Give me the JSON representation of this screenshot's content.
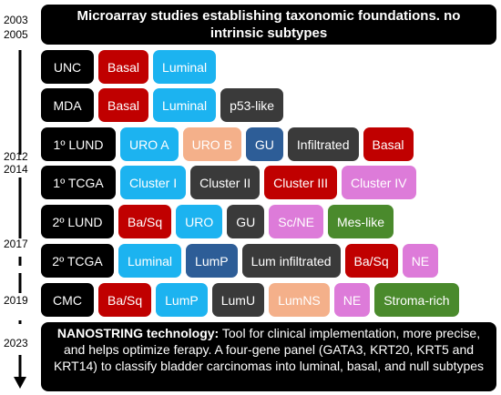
{
  "header": {
    "text": "Microarray studies establishing taxonomic foundations. no intrinsic subtypes"
  },
  "years": [
    "2003",
    "2005",
    "2012",
    "2014",
    "2017",
    "2019",
    "2023"
  ],
  "rows": [
    {
      "label": "UNC",
      "subtypes": [
        {
          "label": "Basal",
          "color": "#c00000"
        },
        {
          "label": "Luminal",
          "color": "#1cb3f0"
        }
      ]
    },
    {
      "label": "MDA",
      "subtypes": [
        {
          "label": "Basal",
          "color": "#c00000"
        },
        {
          "label": "Luminal",
          "color": "#1cb3f0"
        },
        {
          "label": "p53-like",
          "color": "#3a3a3a"
        }
      ]
    },
    {
      "label": "1º LUND",
      "subtypes": [
        {
          "label": "URO A",
          "color": "#1cb3f0"
        },
        {
          "label": "URO B",
          "color": "#f4b08a"
        },
        {
          "label": "GU",
          "color": "#2d5d97"
        },
        {
          "label": "Infiltrated",
          "color": "#3a3a3a"
        },
        {
          "label": "Basal",
          "color": "#c00000"
        }
      ]
    },
    {
      "label": "1º TCGA",
      "subtypes": [
        {
          "label": "Cluster I",
          "color": "#1cb3f0"
        },
        {
          "label": "Cluster II",
          "color": "#3a3a3a"
        },
        {
          "label": "Cluster III",
          "color": "#c00000"
        },
        {
          "label": "Cluster IV",
          "color": "#dd7bd9"
        }
      ]
    },
    {
      "label": "2º LUND",
      "subtypes": [
        {
          "label": "Ba/Sq",
          "color": "#c00000"
        },
        {
          "label": "URO",
          "color": "#1cb3f0"
        },
        {
          "label": "GU",
          "color": "#3a3a3a"
        },
        {
          "label": "Sc/NE",
          "color": "#dd7bd9"
        },
        {
          "label": "Mes-like",
          "color": "#4a8a2c"
        }
      ]
    },
    {
      "label": "2º TCGA",
      "subtypes": [
        {
          "label": "Luminal",
          "color": "#1cb3f0"
        },
        {
          "label": "LumP",
          "color": "#2d5d97"
        },
        {
          "label": "Lum infiltrated",
          "color": "#3a3a3a"
        },
        {
          "label": "Ba/Sq",
          "color": "#c00000"
        },
        {
          "label": "NE",
          "color": "#dd7bd9"
        }
      ]
    },
    {
      "label": "CMC",
      "subtypes": [
        {
          "label": "Ba/Sq",
          "color": "#c00000"
        },
        {
          "label": "LumP",
          "color": "#1cb3f0"
        },
        {
          "label": "LumU",
          "color": "#3a3a3a"
        },
        {
          "label": "LumNS",
          "color": "#f4b08a"
        },
        {
          "label": "NE",
          "color": "#dd7bd9"
        },
        {
          "label": "Stroma-rich",
          "color": "#4a8a2c"
        }
      ]
    }
  ],
  "footer": {
    "lead": "NANOSTRING technology:",
    "text": "Tool for clinical implementation, more precise, and helps optimize ferapy. A four-gene panel (GATA3, KRT20, KRT5 and KRT14) to classify bladder carcinomas into luminal, basal, and null subtypes"
  }
}
